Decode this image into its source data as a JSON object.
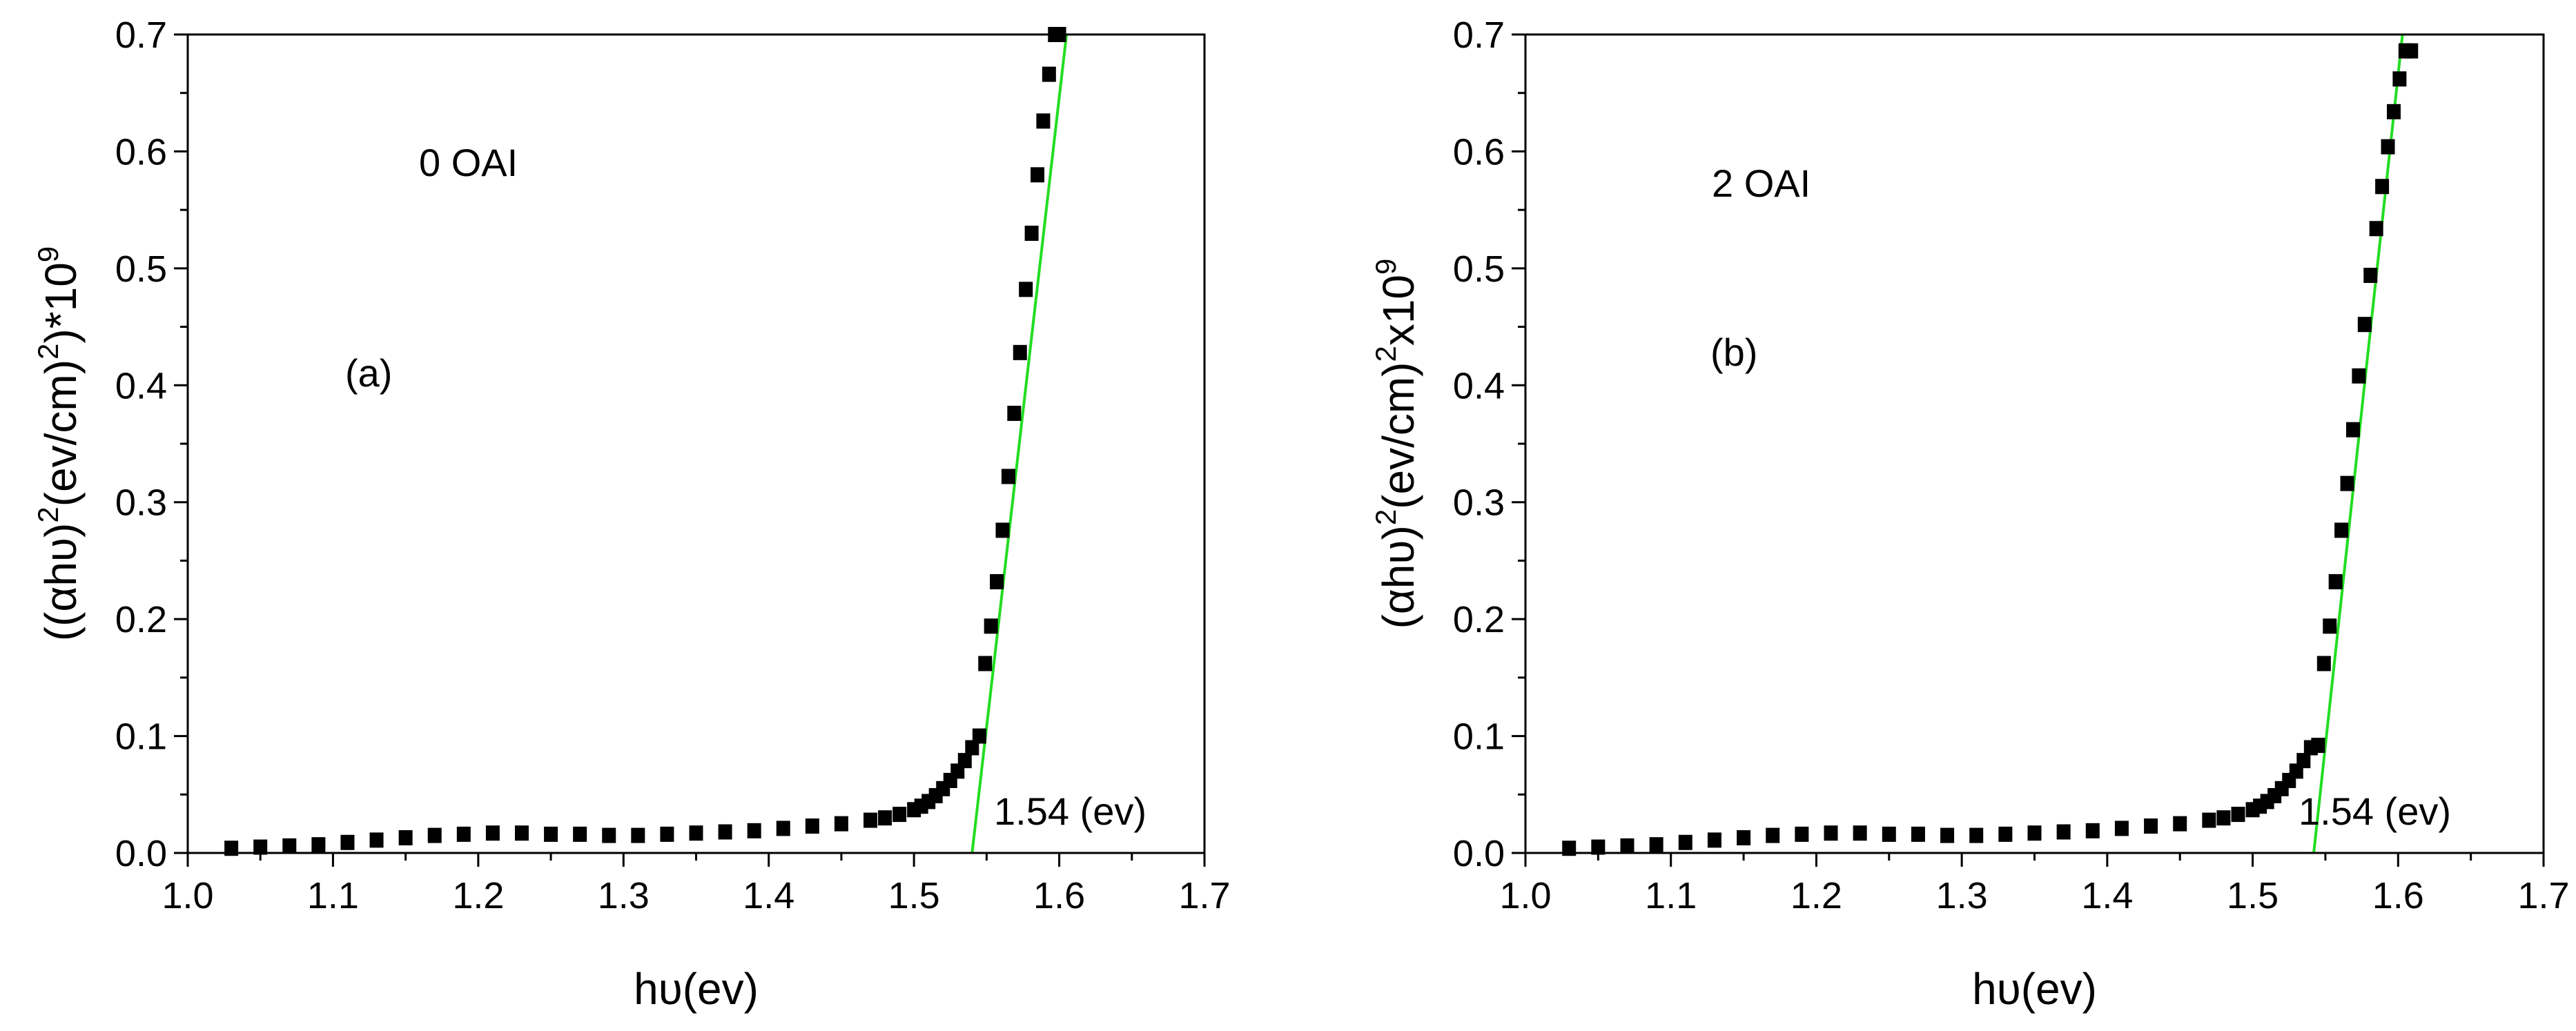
{
  "chart_data": [
    {
      "type": "scatter",
      "panel_label": "(a)",
      "sample_label": "0 OAI",
      "ylabel": {
        "prefix": "((αhυ)",
        "sup1": "2",
        "mid": "(ev/cm)",
        "sup2": "2",
        "suffix": ")*10",
        "sup3": "9"
      },
      "xlabel": "hυ(ev)",
      "xlim": [
        1.0,
        1.7
      ],
      "ylim": [
        0.0,
        0.7
      ],
      "xticks": [
        "1.0",
        "1.1",
        "1.2",
        "1.3",
        "1.4",
        "1.5",
        "1.6",
        "1.7"
      ],
      "yticks": [
        "0.0",
        "0.1",
        "0.2",
        "0.3",
        "0.4",
        "0.5",
        "0.6",
        "0.7"
      ],
      "fit_line": {
        "x": [
          1.54,
          1.605
        ],
        "y": [
          0.0,
          0.7
        ],
        "color": "#22dd22"
      },
      "fit_label": "1.54 (ev)",
      "series": [
        {
          "name": "data",
          "marker": "square",
          "color": "#000000",
          "x": [
            1.03,
            1.05,
            1.07,
            1.09,
            1.11,
            1.13,
            1.15,
            1.17,
            1.19,
            1.21,
            1.23,
            1.25,
            1.27,
            1.29,
            1.31,
            1.33,
            1.35,
            1.37,
            1.39,
            1.41,
            1.43,
            1.45,
            1.47,
            1.48,
            1.49,
            1.5,
            1.505,
            1.51,
            1.515,
            1.52,
            1.525,
            1.53,
            1.535,
            1.54,
            1.545,
            1.549,
            1.553,
            1.557,
            1.561,
            1.565,
            1.569,
            1.573,
            1.577,
            1.581,
            1.585,
            1.589,
            1.593,
            1.597,
            1.6
          ],
          "y": [
            0.004,
            0.005,
            0.006,
            0.007,
            0.009,
            0.011,
            0.013,
            0.015,
            0.016,
            0.017,
            0.017,
            0.016,
            0.016,
            0.015,
            0.015,
            0.016,
            0.017,
            0.018,
            0.019,
            0.021,
            0.023,
            0.025,
            0.028,
            0.03,
            0.033,
            0.037,
            0.04,
            0.044,
            0.049,
            0.055,
            0.062,
            0.07,
            0.079,
            0.09,
            0.1,
            0.162,
            0.194,
            0.232,
            0.276,
            0.322,
            0.376,
            0.428,
            0.482,
            0.53,
            0.58,
            0.626,
            0.666,
            0.7,
            0.7
          ]
        }
      ]
    },
    {
      "type": "scatter",
      "panel_label": "(b)",
      "sample_label": "2 OAI",
      "ylabel": {
        "prefix": "(αhυ)",
        "sup1": "2",
        "mid": "(ev/cm)",
        "sup2": "2",
        "suffix": "x10",
        "sup3": "9"
      },
      "xlabel": "hυ(ev)",
      "xlim": [
        1.0,
        1.7
      ],
      "ylim": [
        0.0,
        0.7
      ],
      "xticks": [
        "1.0",
        "1.1",
        "1.2",
        "1.3",
        "1.4",
        "1.5",
        "1.6",
        "1.7"
      ],
      "yticks": [
        "0.0",
        "0.1",
        "0.2",
        "0.3",
        "0.4",
        "0.5",
        "0.6",
        "0.7"
      ],
      "fit_line": {
        "x": [
          1.542,
          1.603
        ],
        "y": [
          0.0,
          0.7
        ],
        "color": "#22dd22"
      },
      "fit_label": "1.54 (ev)",
      "series": [
        {
          "name": "data",
          "marker": "square",
          "color": "#000000",
          "x": [
            1.03,
            1.05,
            1.07,
            1.09,
            1.11,
            1.13,
            1.15,
            1.17,
            1.19,
            1.21,
            1.23,
            1.25,
            1.27,
            1.29,
            1.31,
            1.33,
            1.35,
            1.37,
            1.39,
            1.41,
            1.43,
            1.45,
            1.47,
            1.48,
            1.49,
            1.5,
            1.505,
            1.51,
            1.515,
            1.52,
            1.525,
            1.53,
            1.535,
            1.54,
            1.545,
            1.549,
            1.553,
            1.557,
            1.561,
            1.565,
            1.569,
            1.573,
            1.577,
            1.581,
            1.585,
            1.589,
            1.593,
            1.597,
            1.601,
            1.605,
            1.609
          ],
          "y": [
            0.004,
            0.005,
            0.006,
            0.007,
            0.009,
            0.011,
            0.013,
            0.015,
            0.016,
            0.017,
            0.017,
            0.016,
            0.016,
            0.015,
            0.015,
            0.016,
            0.017,
            0.018,
            0.019,
            0.021,
            0.023,
            0.025,
            0.028,
            0.03,
            0.033,
            0.037,
            0.04,
            0.044,
            0.049,
            0.055,
            0.062,
            0.07,
            0.079,
            0.09,
            0.092,
            0.162,
            0.194,
            0.232,
            0.276,
            0.316,
            0.362,
            0.408,
            0.452,
            0.494,
            0.534,
            0.57,
            0.604,
            0.634,
            0.662,
            0.686,
            0.686
          ]
        }
      ]
    }
  ]
}
